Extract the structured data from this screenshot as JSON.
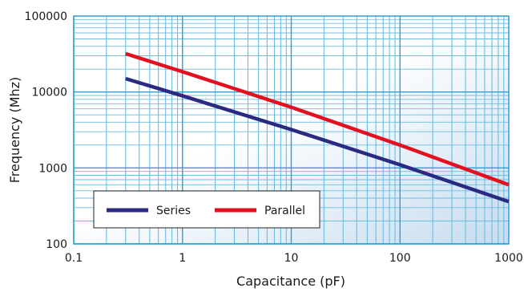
{
  "chart_data": {
    "type": "line",
    "title": "",
    "xlabel": "Capacitance (pF)",
    "ylabel": "Frequency (Mhz)",
    "x_scale": "log",
    "y_scale": "log",
    "xlim": [
      0.1,
      1000
    ],
    "ylim": [
      100,
      100000
    ],
    "x_ticks": [
      "0.1",
      "1",
      "10",
      "100",
      "1000"
    ],
    "y_ticks": [
      "100",
      "1000",
      "10000",
      "100000"
    ],
    "grid": true,
    "legend_position": "bottom-left",
    "series": [
      {
        "name": "Series",
        "color": "#2b2a82",
        "x": [
          0.3,
          1,
          10,
          100,
          1000
        ],
        "y": [
          15000,
          8900,
          3200,
          1100,
          360
        ]
      },
      {
        "name": "Parallel",
        "color": "#e3101f",
        "x": [
          0.3,
          1,
          10,
          100,
          1000
        ],
        "y": [
          32000,
          18500,
          6300,
          2000,
          600
        ]
      }
    ]
  },
  "colors": {
    "grid_line": "#2e9fd2",
    "minor_grid_line": "#6cbde2",
    "plot_bg_light": "#ffffff",
    "plot_bg_tint": "#c6dcef",
    "legend_border": "#222222"
  }
}
